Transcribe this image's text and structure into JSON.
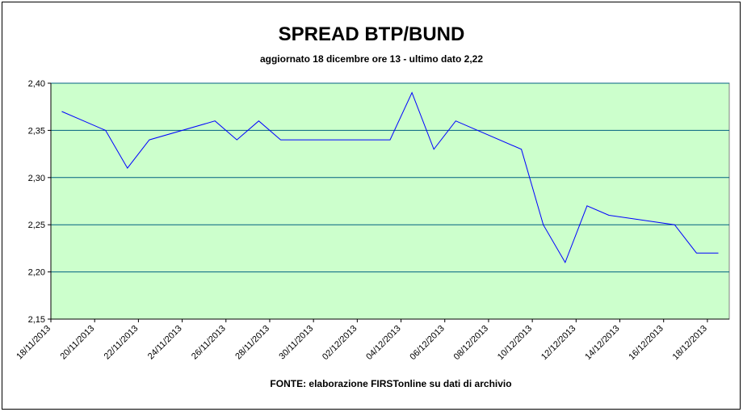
{
  "chart_data": {
    "type": "line",
    "title": "SPREAD BTP/BUND",
    "subtitle": "aggiornato 18 dicembre ore 13 - ultimo dato 2,22",
    "source": "FONTE:  elaborazione FIRSTonline su dati di archivio",
    "x": [
      "18/11/2013",
      "19/11/2013",
      "20/11/2013",
      "21/11/2013",
      "22/11/2013",
      "25/11/2013",
      "26/11/2013",
      "27/11/2013",
      "28/11/2013",
      "03/12/2013",
      "04/12/2013",
      "05/12/2013",
      "06/12/2013",
      "09/12/2013",
      "10/12/2013",
      "11/12/2013",
      "12/12/2013",
      "13/12/2013",
      "16/12/2013",
      "17/12/2013",
      "18/12/2013"
    ],
    "series": [
      {
        "color": "#0000ff",
        "values": [
          2.37,
          2.36,
          2.35,
          2.31,
          2.34,
          2.36,
          2.34,
          2.36,
          2.34,
          2.34,
          2.39,
          2.33,
          2.36,
          2.33,
          2.25,
          2.21,
          2.27,
          2.26,
          2.25,
          2.22,
          2.22
        ]
      }
    ],
    "xlim": [
      "18/11/2013",
      "19/12/2013"
    ],
    "xticks": [
      "18/11/2013",
      "20/11/2013",
      "22/11/2013",
      "24/11/2013",
      "26/11/2013",
      "28/11/2013",
      "30/11/2013",
      "02/12/2013",
      "04/12/2013",
      "06/12/2013",
      "08/12/2013",
      "10/12/2013",
      "12/12/2013",
      "14/12/2013",
      "16/12/2013",
      "18/12/2013"
    ],
    "ylim": [
      2.15,
      2.4
    ],
    "yticks": [
      {
        "value": 2.15,
        "label": "2,15"
      },
      {
        "value": 2.2,
        "label": "2,20"
      },
      {
        "value": 2.25,
        "label": "2,25"
      },
      {
        "value": 2.3,
        "label": "2,30"
      },
      {
        "value": 2.35,
        "label": "2,35"
      },
      {
        "value": 2.4,
        "label": "2,40"
      }
    ],
    "grid": true,
    "plot_background": "#ccffcc",
    "grid_color": "#006080"
  }
}
